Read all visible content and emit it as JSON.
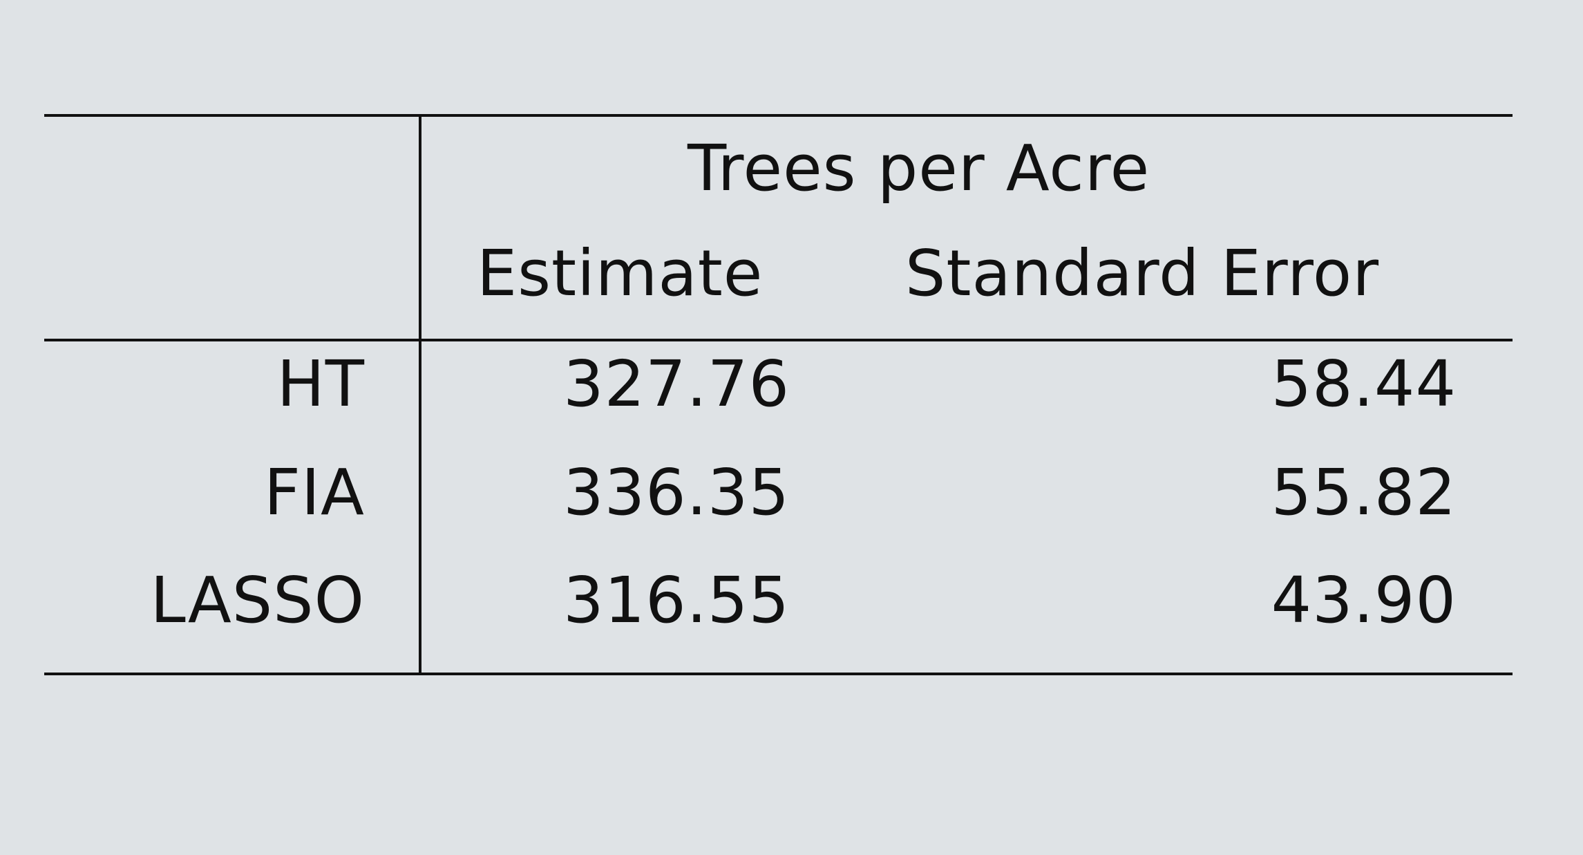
{
  "table": {
    "group_header": "Trees per Acre",
    "columns": [
      "Estimate",
      "Standard Error"
    ],
    "rows": [
      {
        "label": "HT",
        "estimate": "327.76",
        "standard_error": "58.44"
      },
      {
        "label": "FIA",
        "estimate": "336.35",
        "standard_error": "55.82"
      },
      {
        "label": "LASSO",
        "estimate": "316.55",
        "standard_error": "43.90"
      }
    ]
  }
}
